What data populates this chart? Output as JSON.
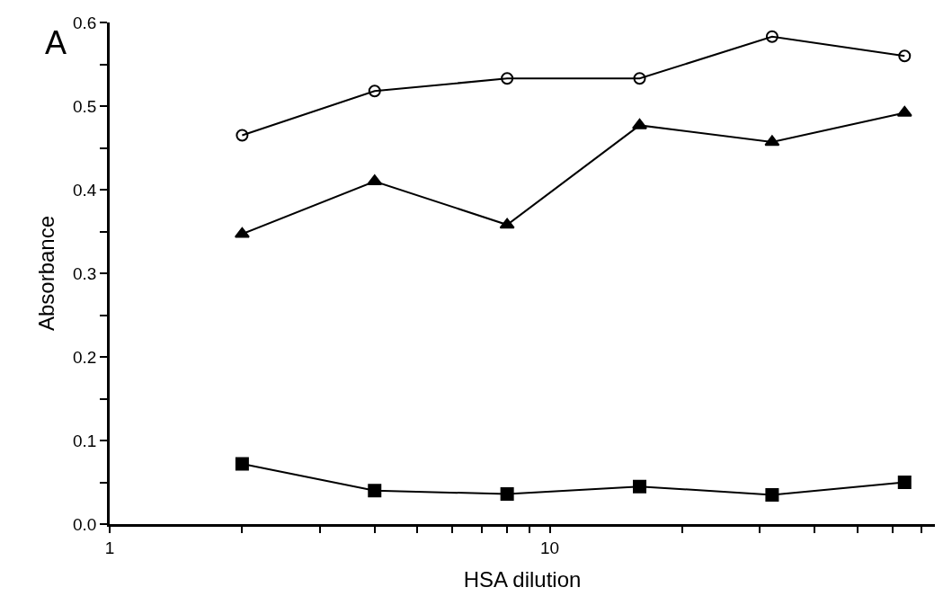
{
  "chart_data": {
    "type": "line",
    "xlabel": "HSA dilution",
    "ylabel": "Absorbance",
    "annotations": [
      "A"
    ],
    "log": "x",
    "grid": false,
    "line_style": "solid",
    "x": [
      2,
      4,
      8,
      16,
      32,
      64
    ],
    "xlim": [
      1,
      75
    ],
    "xticks": [
      1,
      {
        "value": 2,
        "label": null
      },
      {
        "value": 3,
        "label": null
      },
      {
        "value": 4,
        "label": null
      },
      {
        "value": 5,
        "label": null
      },
      {
        "value": 6,
        "label": null
      },
      {
        "value": 7,
        "label": null
      },
      {
        "value": 8,
        "label": null
      },
      {
        "value": 9,
        "label": null
      },
      10,
      {
        "value": 20,
        "label": null
      },
      {
        "value": 30,
        "label": null
      },
      {
        "value": 40,
        "label": null
      },
      {
        "value": 50,
        "label": null
      },
      {
        "value": 60,
        "label": null
      },
      {
        "value": 70,
        "label": null
      }
    ],
    "ylim": [
      0,
      0.6
    ],
    "yticks": [
      {
        "value": 0,
        "label": "0.0"
      },
      {
        "value": 0.05,
        "label": null
      },
      0.1,
      {
        "value": 0.15,
        "label": null
      },
      0.2,
      {
        "value": 0.25,
        "label": null
      },
      0.3,
      {
        "value": 0.35,
        "label": null
      },
      0.4,
      {
        "value": 0.45,
        "label": null
      },
      0.5,
      {
        "value": 0.55,
        "label": null
      },
      0.6
    ],
    "series": [
      {
        "color": "#000000",
        "marker": "circle",
        "values": [
          0.465,
          0.518,
          0.533,
          0.533,
          0.583,
          0.56
        ]
      },
      {
        "color": "#000000",
        "marker": "triangle",
        "values": [
          0.347,
          0.41,
          0.358,
          0.477,
          0.457,
          0.492
        ]
      },
      {
        "color": "#000000",
        "marker": "square",
        "values": [
          0.072,
          0.04,
          0.036,
          0.045,
          0.035,
          0.05
        ]
      }
    ]
  }
}
